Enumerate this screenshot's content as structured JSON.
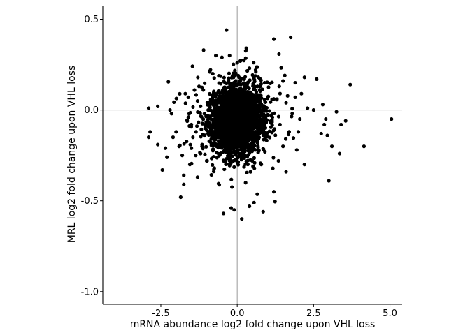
{
  "chart_data": {
    "type": "scatter",
    "xlabel": "mRNA abundance log2 fold change upon VHL loss",
    "ylabel": "MRL log2 fold change upon VHL loss",
    "xlim": [
      -4.4,
      5.4
    ],
    "ylim": [
      -1.07,
      0.575
    ],
    "xticks": [
      {
        "value": -2.5,
        "label": "-2.5"
      },
      {
        "value": 0.0,
        "label": "0.0"
      },
      {
        "value": 2.5,
        "label": "2.5"
      },
      {
        "value": 5.0,
        "label": "5.0"
      }
    ],
    "yticks": [
      {
        "value": 0.5,
        "label": "0.5"
      },
      {
        "value": 0.0,
        "label": "0.0"
      },
      {
        "value": -0.5,
        "label": "-0.5"
      },
      {
        "value": -1.0,
        "label": "-1.0"
      }
    ],
    "reference_lines": {
      "x": 0,
      "y": 0
    },
    "grid": false,
    "legend": "none",
    "point_color": "#000000",
    "line_color": "#999999",
    "points": [
      [
        -2.9,
        0.01
      ],
      [
        -2.85,
        -0.12
      ],
      [
        -2.9,
        -0.15
      ],
      [
        -2.6,
        0.02
      ],
      [
        -2.6,
        -0.19
      ],
      [
        -2.45,
        -0.33
      ],
      [
        -2.35,
        -0.21
      ],
      [
        -2.3,
        -0.26
      ],
      [
        -2.2,
        0.0
      ],
      [
        -2.15,
        -0.02
      ],
      [
        -2.1,
        -0.15
      ],
      [
        -2.0,
        -0.12
      ],
      [
        -1.9,
        -0.2
      ],
      [
        -1.85,
        -0.48
      ],
      [
        -1.8,
        -0.25
      ],
      [
        -1.75,
        -0.36
      ],
      [
        -1.75,
        -0.41
      ],
      [
        -1.7,
        0.09
      ],
      [
        -1.6,
        -0.04
      ],
      [
        -1.55,
        -0.3
      ],
      [
        -1.5,
        -0.21
      ],
      [
        -1.45,
        -0.15
      ],
      [
        -1.3,
        0.05
      ],
      [
        -1.3,
        -0.37
      ],
      [
        -1.2,
        -0.24
      ],
      [
        -1.1,
        0.33
      ],
      [
        -1.0,
        -0.28
      ],
      [
        -0.9,
        0.21
      ],
      [
        -0.8,
        0.2
      ],
      [
        -0.75,
        -0.32
      ],
      [
        -0.5,
        0.29
      ],
      [
        -0.35,
        0.44
      ],
      [
        -0.25,
        0.3
      ],
      [
        -0.2,
        -0.54
      ],
      [
        -0.1,
        -0.55
      ],
      [
        0.0,
        0.26
      ],
      [
        0.1,
        0.27
      ],
      [
        0.15,
        -0.6
      ],
      [
        0.4,
        0.23
      ],
      [
        0.4,
        -0.53
      ],
      [
        0.6,
        0.22
      ],
      [
        0.85,
        -0.56
      ],
      [
        0.9,
        0.15
      ],
      [
        1.2,
        0.39
      ],
      [
        1.2,
        -0.45
      ],
      [
        1.5,
        0.16
      ],
      [
        1.6,
        -0.34
      ],
      [
        1.75,
        0.4
      ],
      [
        1.9,
        0.15
      ],
      [
        1.95,
        -0.22
      ],
      [
        2.0,
        -0.12
      ],
      [
        2.2,
        0.18
      ],
      [
        2.2,
        -0.3
      ],
      [
        2.3,
        0.01
      ],
      [
        2.5,
        0.0
      ],
      [
        2.6,
        0.17
      ],
      [
        2.75,
        -0.13
      ],
      [
        2.8,
        0.03
      ],
      [
        2.85,
        -0.08
      ],
      [
        2.9,
        -0.05
      ],
      [
        2.95,
        -0.14
      ],
      [
        3.0,
        -0.39
      ],
      [
        3.1,
        -0.2
      ],
      [
        3.25,
        -0.01
      ],
      [
        3.35,
        -0.24
      ],
      [
        3.4,
        -0.08
      ],
      [
        3.55,
        -0.06
      ],
      [
        3.7,
        0.14
      ],
      [
        4.15,
        -0.2
      ],
      [
        5.05,
        -0.05
      ],
      [
        -1.4,
        0.11
      ],
      [
        -1.2,
        0.02
      ],
      [
        -1.05,
        -0.1
      ],
      [
        -0.95,
        0.0
      ],
      [
        -0.85,
        -0.16
      ],
      [
        1.3,
        0.06
      ],
      [
        1.4,
        -0.08
      ],
      [
        1.6,
        0.04
      ],
      [
        1.7,
        -0.12
      ],
      [
        1.8,
        -0.02
      ],
      [
        1.9,
        0.07
      ],
      [
        2.05,
        -0.05
      ],
      [
        2.1,
        0.09
      ],
      [
        1.5,
        -0.2
      ],
      [
        1.35,
        -0.28
      ],
      [
        -1.6,
        0.07
      ],
      [
        -1.5,
        -0.08
      ],
      [
        -1.35,
        -0.12
      ],
      [
        -1.25,
        0.13
      ],
      [
        -1.15,
        -0.19
      ],
      [
        -0.7,
        0.3
      ],
      [
        0.3,
        0.34
      ],
      [
        0.55,
        -0.51
      ],
      [
        -0.45,
        -0.57
      ],
      [
        0.75,
        0.13
      ]
    ]
  }
}
